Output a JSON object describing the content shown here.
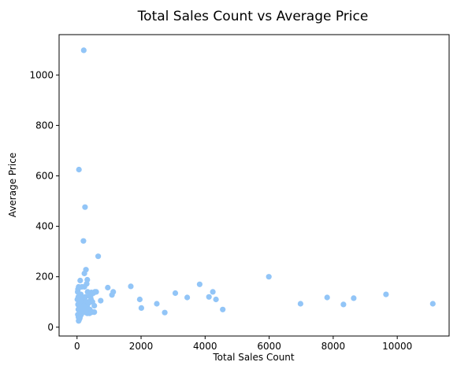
{
  "chart_data": {
    "type": "scatter",
    "title": "Total Sales Count vs Average Price",
    "xlabel": "Total Sales Count",
    "ylabel": "Average Price",
    "xlim": [
      -560,
      11620
    ],
    "ylim": [
      -35,
      1160
    ],
    "xticks": [
      0,
      2000,
      4000,
      6000,
      8000,
      10000
    ],
    "yticks": [
      0,
      200,
      400,
      600,
      800,
      1000
    ],
    "grid": false,
    "legend": "none",
    "colors": {
      "marker": "#92c5f7"
    },
    "series": [
      {
        "x": [
          210,
          60,
          250,
          200,
          280,
          660,
          320,
          300,
          230,
          230,
          50,
          100,
          30,
          150,
          260,
          330,
          450,
          1680,
          960,
          1130,
          1090,
          740,
          600,
          540,
          1960,
          2010,
          2490,
          2740,
          3070,
          3440,
          3830,
          4120,
          4240,
          4340,
          4550,
          5990,
          6980,
          7810,
          8320,
          8640,
          9650,
          11110,
          20,
          40,
          60,
          80,
          100,
          120,
          140,
          160,
          180,
          200,
          220,
          240,
          260,
          280,
          300,
          320,
          340,
          360,
          380,
          400,
          420,
          440,
          470,
          500,
          530,
          560,
          30,
          60,
          90,
          120,
          150,
          180,
          210,
          240,
          270,
          300,
          330,
          360,
          390,
          420,
          450,
          480,
          510,
          540,
          40,
          80,
          120,
          160,
          200,
          240,
          280,
          320,
          360,
          400,
          70,
          110,
          150,
          190,
          230,
          10,
          25,
          45,
          65,
          85,
          105,
          125,
          50,
          90,
          130,
          170,
          210,
          250,
          290
        ],
        "y": [
          1098,
          625,
          476,
          342,
          228,
          281,
          188,
          172,
          213,
          160,
          160,
          185,
          150,
          160,
          120,
          140,
          138,
          162,
          157,
          140,
          128,
          105,
          140,
          85,
          110,
          76,
          93,
          58,
          135,
          118,
          170,
          120,
          140,
          110,
          70,
          200,
          93,
          118,
          90,
          115,
          130,
          93,
          140,
          120,
          100,
          110,
          95,
          130,
          105,
          90,
          80,
          70,
          115,
          100,
          85,
          95,
          90,
          80,
          70,
          65,
          100,
          130,
          120,
          110,
          60,
          135,
          60,
          140,
          90,
          85,
          75,
          65,
          80,
          95,
          70,
          60,
          75,
          85,
          100,
          65,
          55,
          120,
          60,
          100,
          135,
          60,
          70,
          90,
          110,
          80,
          60,
          75,
          100,
          55,
          95,
          70,
          45,
          55,
          65,
          75,
          60,
          110,
          50,
          40,
          30,
          35,
          45,
          55,
          25,
          40,
          50,
          65,
          85,
          75,
          70
        ]
      }
    ]
  }
}
